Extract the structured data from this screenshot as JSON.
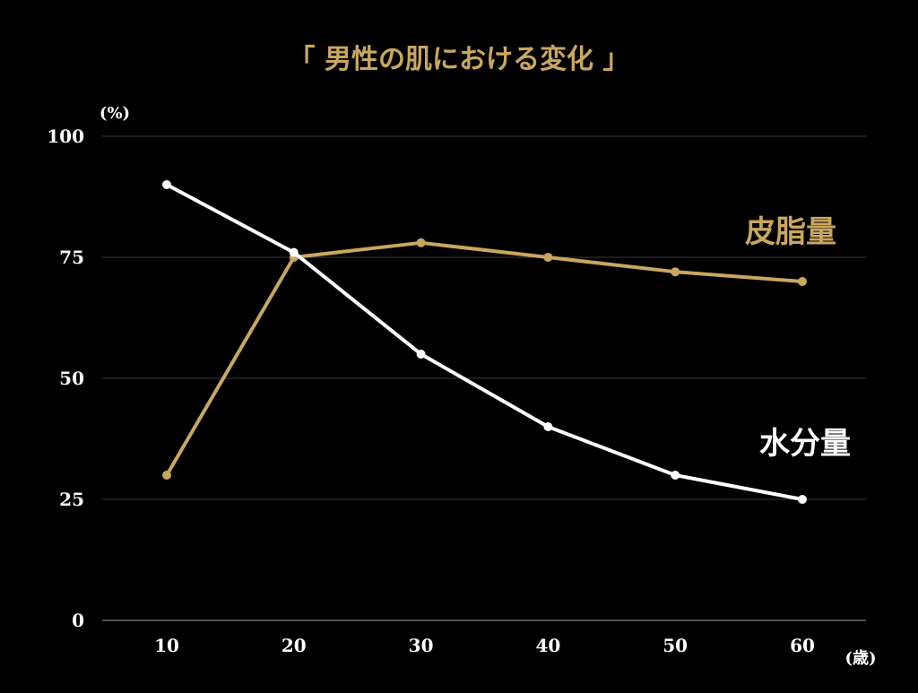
{
  "chart_data": {
    "type": "line",
    "title": "「 男性の肌における変化 」",
    "ylabel": "(%)",
    "xlabel": "(歳)",
    "categories": [
      "10",
      "20",
      "30",
      "40",
      "50",
      "60"
    ],
    "x": [
      10,
      20,
      30,
      40,
      50,
      60
    ],
    "yticks": [
      "100",
      "75",
      "50",
      "25",
      "0"
    ],
    "ylim": [
      0,
      100
    ],
    "grid": true,
    "series": [
      {
        "name": "皮脂量",
        "values": [
          30,
          75,
          78,
          75,
          72,
          70
        ],
        "color": "#c9a75f"
      },
      {
        "name": "水分量",
        "values": [
          90,
          76,
          55,
          40,
          30,
          25
        ],
        "color": "#ffffff"
      }
    ],
    "colors": {
      "background": "#000000",
      "title": "#c9a75f",
      "text": "#ffffff"
    }
  }
}
